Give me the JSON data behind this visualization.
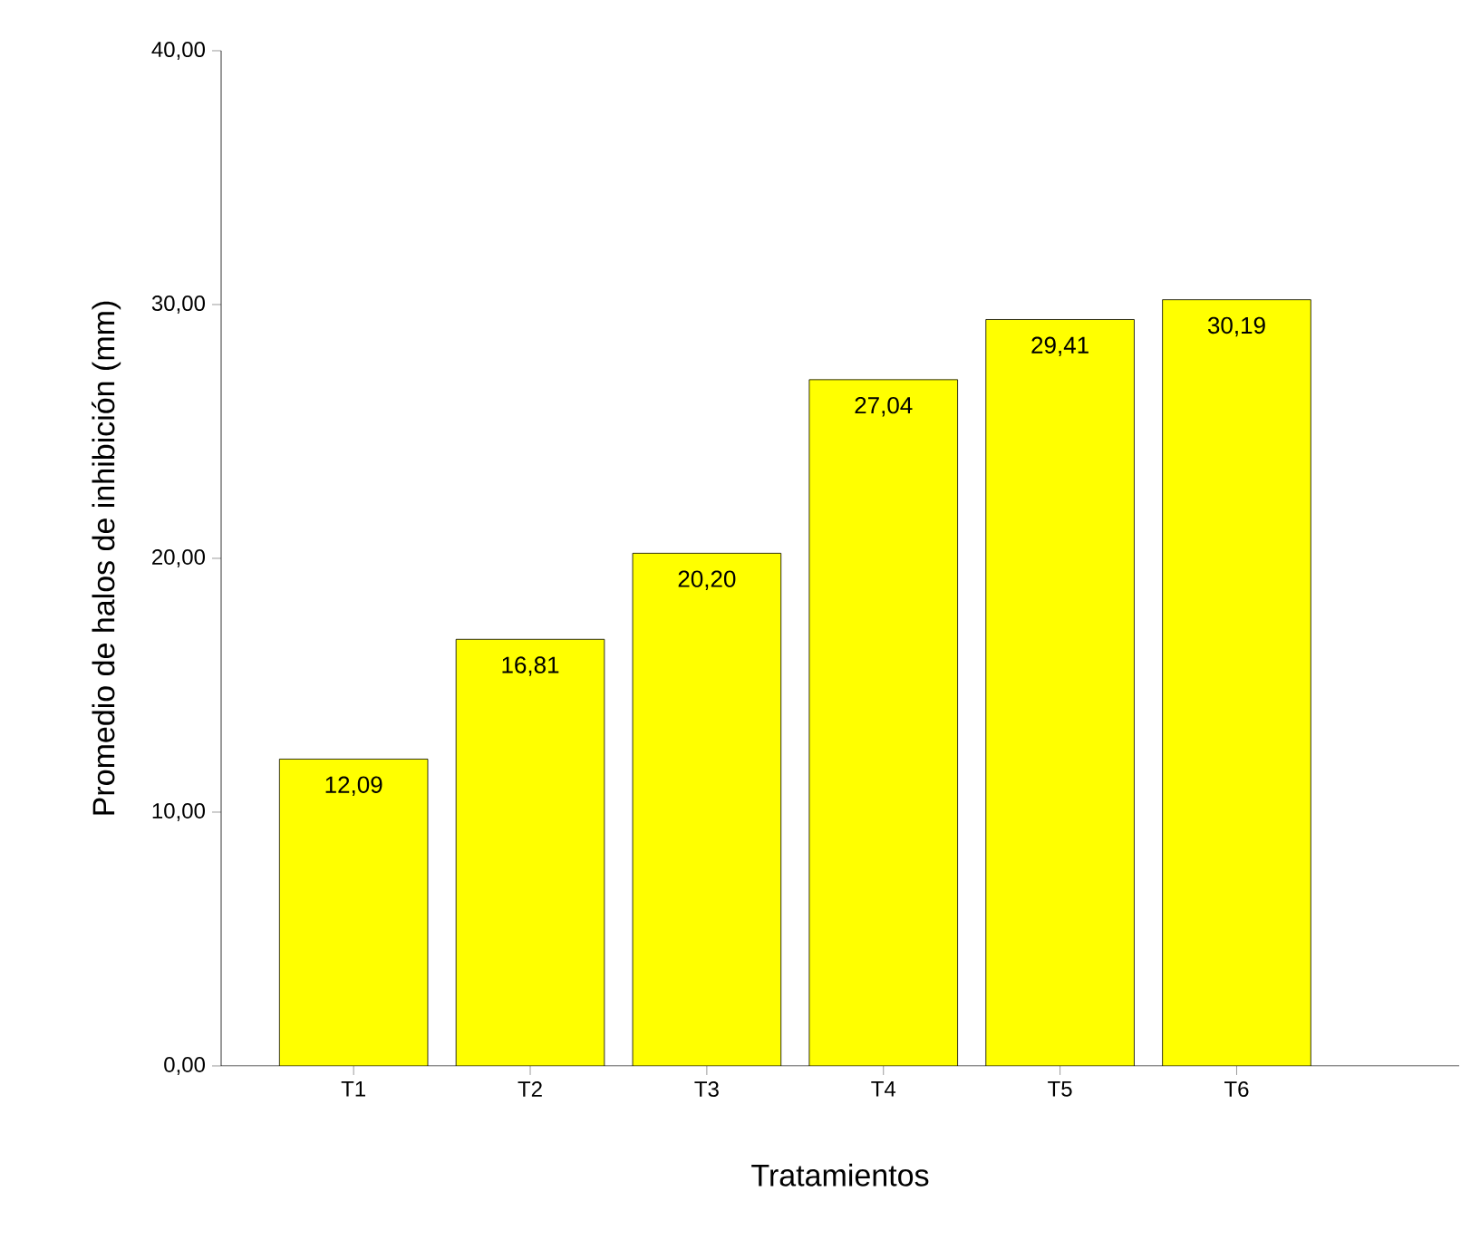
{
  "chart_data": {
    "type": "bar",
    "xlabel": "Tratamientos",
    "ylabel": "Promedio de  halos de inhibición (mm)",
    "categories": [
      "T1",
      "T2",
      "T3",
      "T4",
      "T5",
      "T6"
    ],
    "values": [
      12.09,
      16.81,
      20.2,
      27.04,
      29.41,
      30.19
    ],
    "value_labels": [
      "12,09",
      "16,81",
      "20,20",
      "27,04",
      "29,41",
      "30,19"
    ],
    "color": "#ffff00",
    "ylim": [
      0,
      40
    ],
    "yticks": [
      {
        "value": 0,
        "label": "0,00"
      },
      {
        "value": 10,
        "label": "10,00"
      },
      {
        "value": 20,
        "label": "20,00"
      },
      {
        "value": 30,
        "label": "30,00"
      },
      {
        "value": 40,
        "label": "40,00"
      }
    ],
    "grid": false
  }
}
